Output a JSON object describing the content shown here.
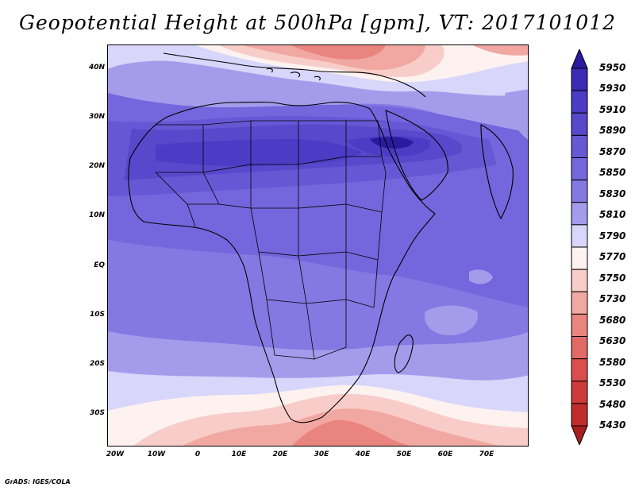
{
  "title": "Geopotential Height at 500hPa [gpm], VT: 2017101012",
  "credit": "GrADS: IGES/COLA",
  "map": {
    "region": "Africa",
    "lat_ticks": [
      "40N",
      "30N",
      "20N",
      "10N",
      "EQ",
      "10S",
      "20S",
      "30S"
    ],
    "lon_ticks": [
      "20W",
      "10W",
      "0",
      "10E",
      "20E",
      "30E",
      "40E",
      "50E",
      "60E",
      "70E"
    ]
  },
  "colorbar": {
    "levels": [
      5950,
      5930,
      5910,
      5890,
      5870,
      5850,
      5830,
      5810,
      5790,
      5770,
      5750,
      5730,
      5680,
      5630,
      5580,
      5530,
      5480,
      5430
    ],
    "label_texts": [
      "5950",
      "5930",
      "5910",
      "5890",
      "5870",
      "5850",
      "5830",
      "5810",
      "5790",
      "5770",
      "5750",
      "5730",
      "5680",
      "5630",
      "5580",
      "5530",
      "5480",
      "5430"
    ],
    "colors": [
      "#2b1aa0",
      "#3a2ab4",
      "#4a3cc4",
      "#5848cc",
      "#6658d4",
      "#7466dc",
      "#8478e2",
      "#a49ceb",
      "#d8d6fa",
      "#fdf2f0",
      "#f8cdc9",
      "#f2a8a2",
      "#e9847e",
      "#e26a66",
      "#da4f4e",
      "#cf3a3a",
      "#c12d2d",
      "#a91e1e"
    ]
  },
  "field_colors": {
    "c5950": "#2b1aa0",
    "c5910": "#4a3cc4",
    "c5890": "#5848cc",
    "c5870": "#6658d4",
    "c5850": "#7466dc",
    "c5830": "#8478e2",
    "c5810": "#a49ceb",
    "c5790": "#d8d6fa",
    "c5770": "#fdf2f0",
    "c5750": "#f8cdc9",
    "c5730": "#f2a8a2",
    "c5680": "#e9847e",
    "land": "#000000"
  }
}
